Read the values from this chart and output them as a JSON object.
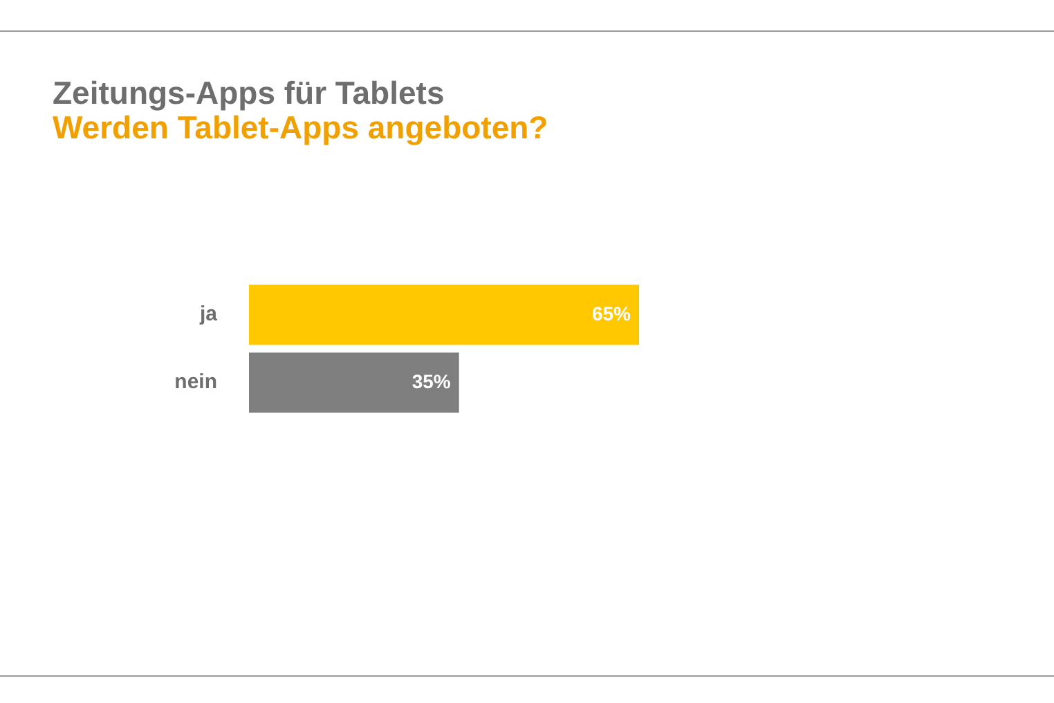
{
  "chart_data": {
    "type": "bar",
    "orientation": "horizontal",
    "title": "Zeitungs-Apps für Tablets",
    "subtitle": "Werden Tablet-Apps angeboten?",
    "categories": [
      "ja",
      "nein"
    ],
    "values": [
      65,
      35
    ],
    "colors": [
      "#ffc800",
      "#7f7f7f"
    ],
    "value_labels": [
      "65%",
      "35%"
    ],
    "legend": false,
    "tick_labels": "y"
  }
}
